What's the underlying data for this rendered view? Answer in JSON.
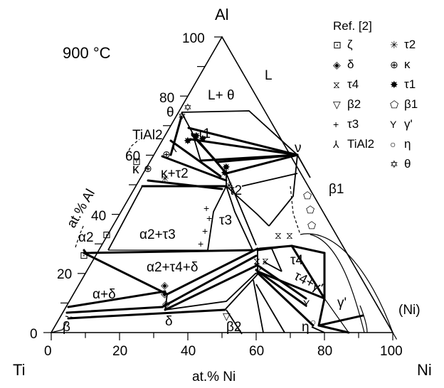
{
  "corners": {
    "top": "Al",
    "left": "Ti",
    "right": "Ni"
  },
  "temperature": "900 °C",
  "axis_ni": {
    "label": "at.% Ni",
    "ticks": [
      "0",
      "20",
      "40",
      "60",
      "80",
      "100"
    ]
  },
  "axis_al": {
    "label": "at.% Al",
    "ticks": [
      "0",
      "20",
      "40",
      "60",
      "80",
      "100"
    ]
  },
  "phase_labels": {
    "L_theta": "L+ θ",
    "L": "L",
    "theta": "θ",
    "TiAl2": "TiAl2",
    "tau1": "τ1",
    "nu": "ν",
    "kappa": "κ",
    "kappa_tau2": "κ+τ2",
    "tau2": "τ2",
    "beta1": "β1",
    "alpha2_top": "α2",
    "tau3": "τ3",
    "alpha2_tau3": "α2+τ3",
    "alpha2_tau4_delta": "α2+τ4+δ",
    "tau4": "τ4",
    "tau4_gamma": "τ4+γ'",
    "gamma_prime": "γ'",
    "alpha_delta": "α+δ",
    "Ni_ss": "(Ni)",
    "beta_bottom": "β",
    "delta_bottom": "δ",
    "beta2_bottom": "β2",
    "eta_bottom": "η"
  },
  "legend": {
    "title": "Ref. [2]",
    "items": [
      {
        "symbol": "⊡",
        "label": "ζ"
      },
      {
        "symbol": "✳",
        "label": "τ2"
      },
      {
        "symbol": "◈",
        "label": "δ"
      },
      {
        "symbol": "⊕",
        "label": "κ"
      },
      {
        "symbol": "⧖",
        "label": "τ4"
      },
      {
        "symbol": "✸",
        "label": "τ1"
      },
      {
        "symbol": "▽",
        "label": "β2"
      },
      {
        "symbol": "⬠",
        "label": "β1"
      },
      {
        "symbol": "+",
        "label": "τ3"
      },
      {
        "symbol": "Y",
        "label": "γ'"
      },
      {
        "symbol": "⅄",
        "label": "TiAl2"
      },
      {
        "symbol": "○",
        "label": "η"
      },
      {
        "symbol": "✡",
        "label": "θ"
      }
    ]
  }
}
